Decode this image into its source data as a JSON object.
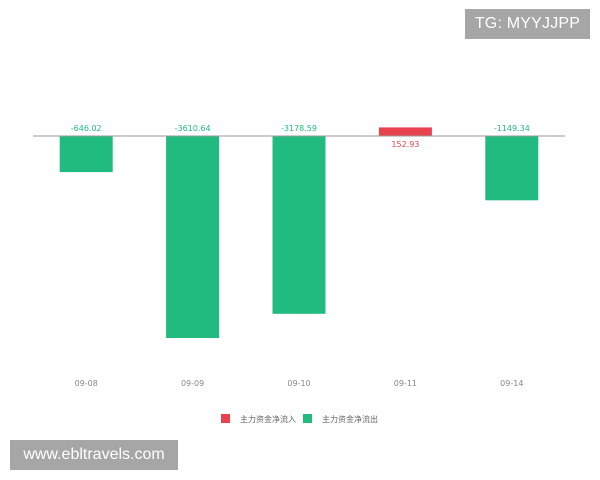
{
  "chart_data": {
    "type": "bar",
    "categories": [
      "09-08",
      "09-09",
      "09-10",
      "09-11",
      "09-14"
    ],
    "values": [
      -646.02,
      -3610.64,
      -3178.59,
      152.93,
      -1149.34
    ],
    "value_labels": [
      "-646.02",
      "-3610.64",
      "-3178.59",
      "152.93",
      "-1149.34"
    ],
    "ylim": [
      -4200,
      300
    ],
    "grid": false,
    "legend_position": "bottom",
    "legend": [
      {
        "name": "主力资金净流入",
        "color": "#e8424f"
      },
      {
        "name": "主力资金净流出",
        "color": "#21bb7f"
      }
    ],
    "colors": {
      "positive": "#e8424f",
      "negative": "#21bb7f",
      "axis": "#999999"
    }
  },
  "watermarks": {
    "top": "TG: MYYJJPP",
    "bottom": "www.ebltravels.com"
  }
}
